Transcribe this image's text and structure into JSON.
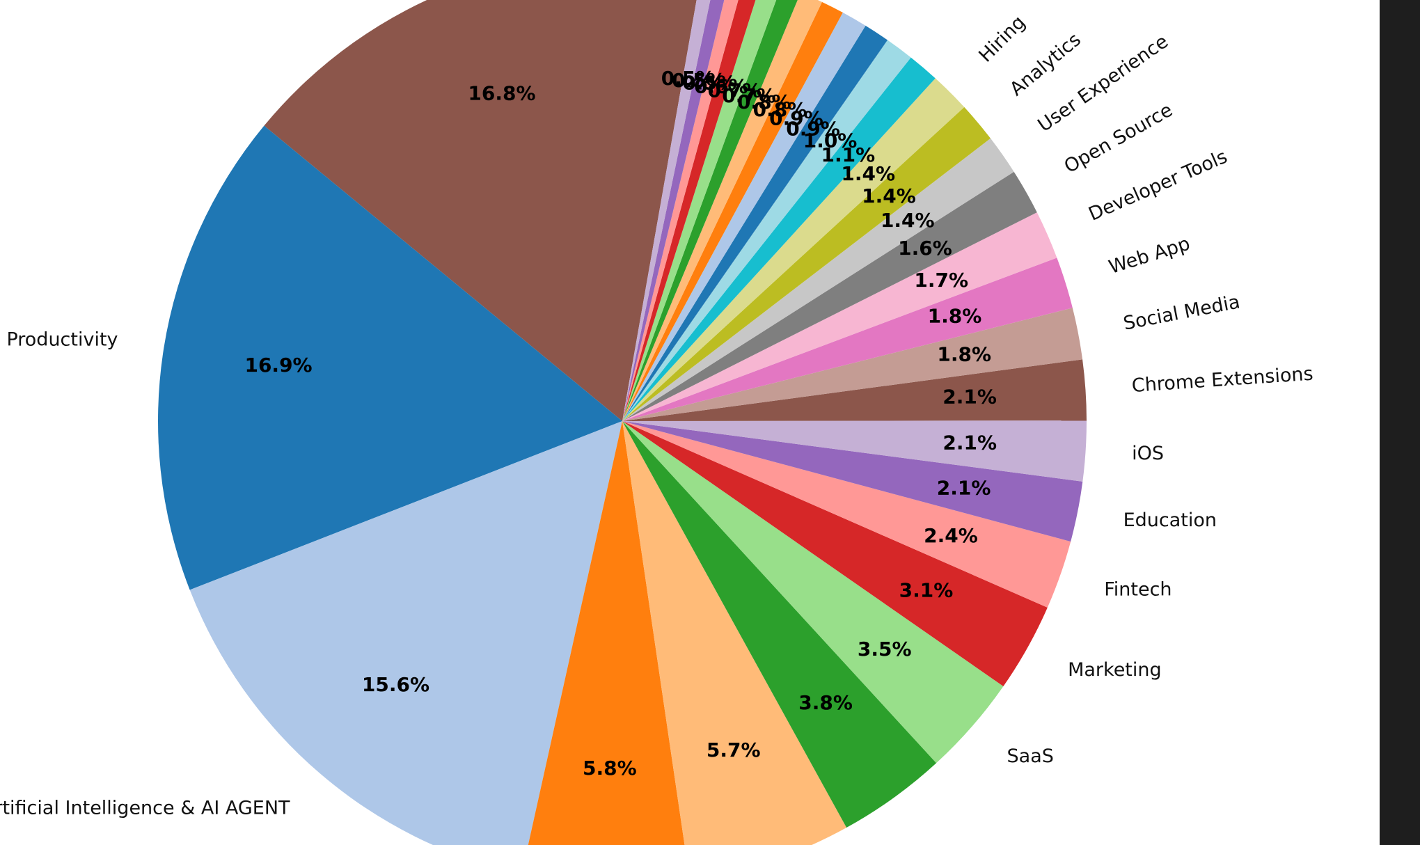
{
  "chart_data": {
    "type": "pie",
    "startangle": 80,
    "categories": [
      null,
      "Productivity",
      "Artificial Intelligence & AI AGENT",
      null,
      null,
      null,
      "SaaS",
      "Marketing",
      "Fintech",
      "Education",
      "iOS",
      "Chrome Extensions",
      "Social Media",
      "Web App",
      "Developer Tools",
      "Open Source",
      "User Experience",
      "Analytics",
      "Hiring",
      null,
      null,
      null,
      null,
      null,
      null,
      null,
      null,
      null,
      null,
      null,
      null
    ],
    "values": [
      16.8,
      16.9,
      15.6,
      5.8,
      5.7,
      3.8,
      3.5,
      3.1,
      2.4,
      2.1,
      2.1,
      2.1,
      1.8,
      1.8,
      1.7,
      1.6,
      1.4,
      1.4,
      1.4,
      1.1,
      1.0,
      0.9,
      0.9,
      0.8,
      0.8,
      0.7,
      0.7,
      0.6,
      0.5,
      0.5,
      0.5
    ],
    "value_labels": [
      "16.8%",
      "16.9%",
      "15.6%",
      "5.8%",
      "5.7%",
      "3.8%",
      "3.5%",
      "3.1%",
      "2.4%",
      "2.1%",
      "2.1%",
      "2.1%",
      "1.8%",
      "1.8%",
      "1.7%",
      "1.6%",
      "1.4%",
      "1.4%",
      "1.4%",
      "1.1%",
      "1.0%",
      "0.9%",
      "0.9%",
      "0.8%",
      "0.8%",
      "0.7%",
      "0.7%",
      "0.6%",
      "0.5%",
      "0.5%",
      "0.5%"
    ],
    "colors": [
      "#8c564b",
      "#1f77b4",
      "#aec7e8",
      "#ff7f0e",
      "#ffbb78",
      "#2ca02c",
      "#98df8a",
      "#d62728",
      "#ff9896",
      "#9467bd",
      "#c5b0d5",
      "#8c564b",
      "#c49c94",
      "#e377c2",
      "#f7b6d2",
      "#7f7f7f",
      "#c7c7c7",
      "#bcbd22",
      "#dbdb8d",
      "#17becf",
      "#9edae5",
      "#1f77b4",
      "#aec7e8",
      "#ff7f0e",
      "#ffbb78",
      "#2ca02c",
      "#98df8a",
      "#d62728",
      "#ff9896",
      "#9467bd",
      "#c5b0d5"
    ]
  }
}
